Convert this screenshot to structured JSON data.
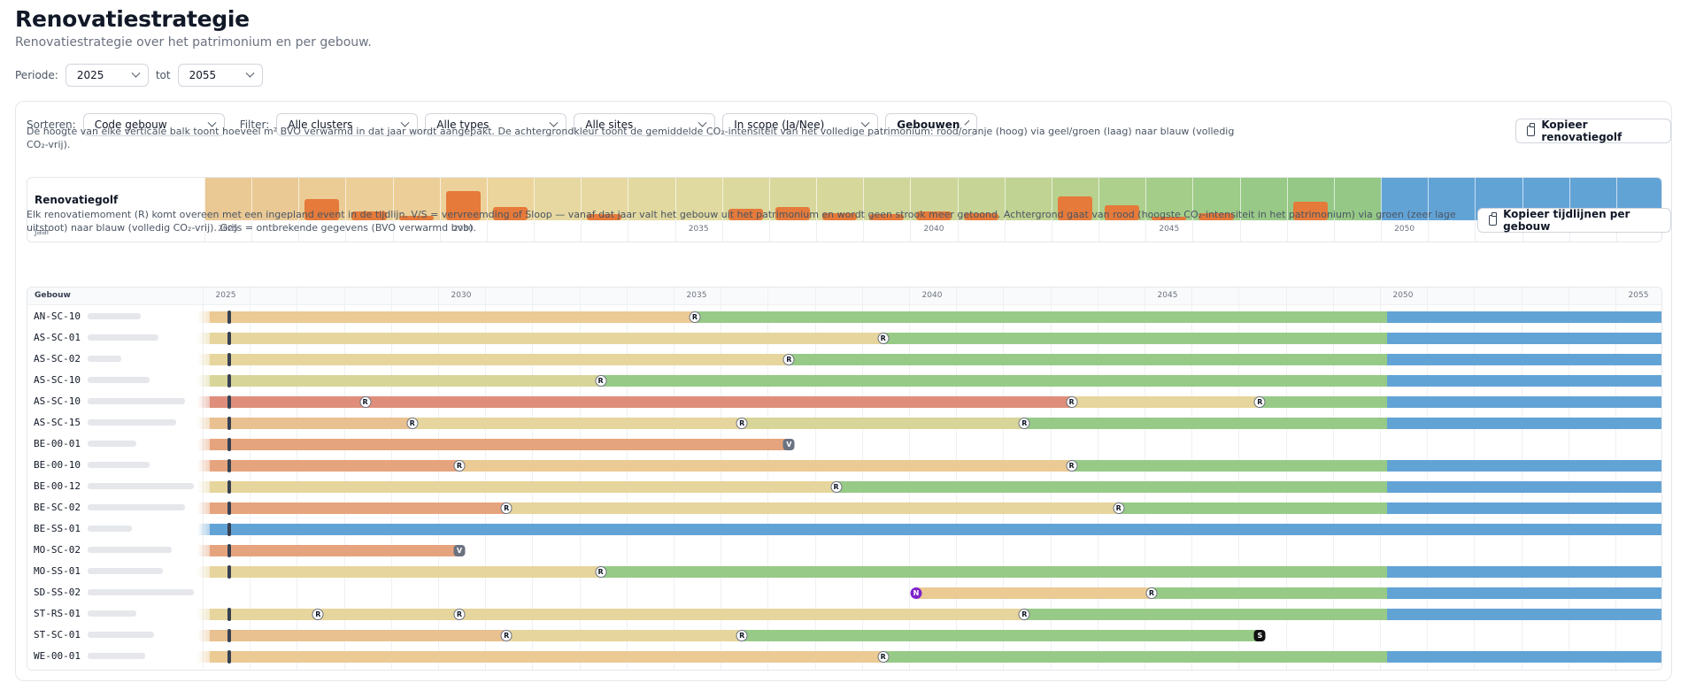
{
  "page": {
    "title": "Renovatiestrategie",
    "subtitle": "Renovatiestrategie over het patrimonium en per gebouw."
  },
  "period": {
    "label": "Periode:",
    "from": "2025",
    "separator": "tot",
    "to": "2055"
  },
  "filters": {
    "sort_label": "Sorteren:",
    "sort_value": "Code gebouw",
    "filter_label": "Filter:",
    "clusters": "Alle clusters",
    "types": "Alle types",
    "sites": "Alle sites",
    "scope": "In scope (Ja/Nee)",
    "view": "Gebouwen"
  },
  "wave": {
    "description": "De hoogte van elke verticale balk toont hoeveel m² BVO verwarmd in dat jaar wordt aangepakt. De achtergrondkleur toont de gemiddelde CO₂-intensiteit van het volledige patrimonium: rood/oranje (hoog) via geel/groen (laag) naar blauw (volledig CO₂-vrij).",
    "copy_button": "Kopieer renovatiegolf",
    "label": "Renovatiegolf",
    "axis_label": "Jaar",
    "year_labels": [
      "2025",
      "2030",
      "2035",
      "2040",
      "2045",
      "2050",
      "2055"
    ],
    "bar_color": "#e57a3a",
    "years": [
      2025,
      2026,
      2027,
      2028,
      2029,
      2030,
      2031,
      2032,
      2033,
      2034,
      2035,
      2036,
      2037,
      2038,
      2039,
      2040,
      2041,
      2042,
      2043,
      2044,
      2045,
      2046,
      2047,
      2048,
      2049,
      2050,
      2051,
      2052,
      2053,
      2054,
      2055
    ],
    "relative_volume": [
      0,
      0,
      0.55,
      0.22,
      0.12,
      0.75,
      0.35,
      0,
      0.15,
      0,
      0,
      0.3,
      0.35,
      0.18,
      0.16,
      0.22,
      0.18,
      0,
      0.62,
      0.38,
      0.08,
      0.18,
      0,
      0.48,
      0,
      0,
      0,
      0,
      0,
      0,
      0
    ],
    "background_colors": [
      "#eac995",
      "#eac995",
      "#ebcc95",
      "#eccf98",
      "#eccf98",
      "#ecd29a",
      "#ecd59c",
      "#e6d8a0",
      "#e6d8a0",
      "#e2d9a0",
      "#e0daa0",
      "#dcd99e",
      "#d9d89c",
      "#d6d89b",
      "#d0d699",
      "#cdd698",
      "#c6d495",
      "#c1d392",
      "#b9d18f",
      "#add08c",
      "#a4cd8a",
      "#9dcb88",
      "#99c987",
      "#95c886",
      "#95c886",
      "#62a3d6",
      "#62a3d6",
      "#62a3d6",
      "#62a3d6",
      "#62a3d6",
      "#62a3d6"
    ]
  },
  "timeline": {
    "description": "Elk renovatiemoment (R) komt overeen met een ingepland event in de tijdlijn. V/S = vervreemding of Sloop — vanaf dat jaar valt het gebouw uit het patrimonium en wordt geen strook meer getoond. Achtergrond gaat van rood (hoogste CO₂-intensiteit in het patrimonium) via groen (zeer lage uitstoot) naar blauw (volledig CO₂-vrij). Grijs = ontbrekende gegevens (BVO verwarmd bvb).",
    "copy_button": "Kopieer tijdlijnen per gebouw",
    "header": "Gebouw",
    "year_labels": [
      "2025",
      "2030",
      "2035",
      "2040",
      "2045",
      "2050",
      "2055"
    ],
    "colors": {
      "red": "#de8e7a",
      "orange": "#e6a47e",
      "peach": "#e9c08f",
      "tan": "#ebca94",
      "beige": "#e6d59c",
      "khaki": "#d8d598",
      "sage": "#cdd495",
      "green": "#98ca87",
      "blue": "#62a3d6"
    },
    "rows": [
      {
        "code": "AN-SC-10",
        "blur_width": 60,
        "segments": [
          {
            "from": 2025,
            "to": 2035.3,
            "color": "tan"
          },
          {
            "from": 2035.3,
            "to": 2050,
            "color": "green"
          },
          {
            "from": 2050,
            "to": 2055.5,
            "color": "blue"
          }
        ],
        "events": [
          {
            "year": 2035.3,
            "type": "R"
          }
        ]
      },
      {
        "code": "AS-SC-01",
        "blur_width": 80,
        "segments": [
          {
            "from": 2025,
            "to": 2039.3,
            "color": "beige"
          },
          {
            "from": 2039.3,
            "to": 2050,
            "color": "green"
          },
          {
            "from": 2050,
            "to": 2055.5,
            "color": "blue"
          }
        ],
        "events": [
          {
            "year": 2039.3,
            "type": "R"
          }
        ]
      },
      {
        "code": "AS-SC-02",
        "blur_width": 38,
        "segments": [
          {
            "from": 2025,
            "to": 2037.3,
            "color": "beige"
          },
          {
            "from": 2037.3,
            "to": 2050,
            "color": "green"
          },
          {
            "from": 2050,
            "to": 2055.5,
            "color": "blue"
          }
        ],
        "events": [
          {
            "year": 2037.3,
            "type": "R"
          }
        ]
      },
      {
        "code": "AS-SC-10",
        "blur_width": 70,
        "segments": [
          {
            "from": 2025,
            "to": 2033.3,
            "color": "khaki"
          },
          {
            "from": 2033.3,
            "to": 2050,
            "color": "green"
          },
          {
            "from": 2050,
            "to": 2055.5,
            "color": "blue"
          }
        ],
        "events": [
          {
            "year": 2033.3,
            "type": "R"
          }
        ]
      },
      {
        "code": "AS-SC-10",
        "blur_width": 110,
        "segments": [
          {
            "from": 2025,
            "to": 2043.3,
            "color": "red"
          },
          {
            "from": 2043.3,
            "to": 2047.3,
            "color": "beige"
          },
          {
            "from": 2047.3,
            "to": 2050,
            "color": "green"
          },
          {
            "from": 2050,
            "to": 2055.5,
            "color": "blue"
          }
        ],
        "events": [
          {
            "year": 2028.3,
            "type": "R"
          },
          {
            "year": 2043.3,
            "type": "R"
          },
          {
            "year": 2047.3,
            "type": "R"
          }
        ]
      },
      {
        "code": "AS-SC-15",
        "blur_width": 100,
        "segments": [
          {
            "from": 2025,
            "to": 2029.3,
            "color": "peach"
          },
          {
            "from": 2029.3,
            "to": 2036.3,
            "color": "beige"
          },
          {
            "from": 2036.3,
            "to": 2042.3,
            "color": "khaki"
          },
          {
            "from": 2042.3,
            "to": 2050,
            "color": "green"
          },
          {
            "from": 2050,
            "to": 2055.5,
            "color": "blue"
          }
        ],
        "events": [
          {
            "year": 2029.3,
            "type": "R"
          },
          {
            "year": 2036.3,
            "type": "R"
          },
          {
            "year": 2042.3,
            "type": "R"
          }
        ]
      },
      {
        "code": "BE-00-01",
        "blur_width": 55,
        "segments": [
          {
            "from": 2025,
            "to": 2037.3,
            "color": "orange"
          }
        ],
        "events": [
          {
            "year": 2037.3,
            "type": "V"
          }
        ]
      },
      {
        "code": "BE-00-10",
        "blur_width": 70,
        "segments": [
          {
            "from": 2025,
            "to": 2030.3,
            "color": "orange"
          },
          {
            "from": 2030.3,
            "to": 2043.3,
            "color": "tan"
          },
          {
            "from": 2043.3,
            "to": 2050,
            "color": "green"
          },
          {
            "from": 2050,
            "to": 2055.5,
            "color": "blue"
          }
        ],
        "events": [
          {
            "year": 2030.3,
            "type": "R"
          },
          {
            "year": 2043.3,
            "type": "R"
          }
        ]
      },
      {
        "code": "BE-00-12",
        "blur_width": 120,
        "segments": [
          {
            "from": 2025,
            "to": 2038.3,
            "color": "beige"
          },
          {
            "from": 2038.3,
            "to": 2050,
            "color": "green"
          },
          {
            "from": 2050,
            "to": 2055.5,
            "color": "blue"
          }
        ],
        "events": [
          {
            "year": 2038.3,
            "type": "R"
          }
        ]
      },
      {
        "code": "BE-SC-02",
        "blur_width": 110,
        "segments": [
          {
            "from": 2025,
            "to": 2031.3,
            "color": "orange"
          },
          {
            "from": 2031.3,
            "to": 2044.3,
            "color": "beige"
          },
          {
            "from": 2044.3,
            "to": 2050,
            "color": "green"
          },
          {
            "from": 2050,
            "to": 2055.5,
            "color": "blue"
          }
        ],
        "events": [
          {
            "year": 2031.3,
            "type": "R"
          },
          {
            "year": 2044.3,
            "type": "R"
          }
        ]
      },
      {
        "code": "BE-SS-01",
        "blur_width": 50,
        "segments": [
          {
            "from": 2025,
            "to": 2055.5,
            "color": "blue"
          }
        ],
        "events": []
      },
      {
        "code": "MO-SC-02",
        "blur_width": 95,
        "segments": [
          {
            "from": 2025,
            "to": 2030.3,
            "color": "orange"
          }
        ],
        "events": [
          {
            "year": 2030.3,
            "type": "V"
          }
        ]
      },
      {
        "code": "MO-SS-01",
        "blur_width": 85,
        "segments": [
          {
            "from": 2025,
            "to": 2033.3,
            "color": "beige"
          },
          {
            "from": 2033.3,
            "to": 2050,
            "color": "green"
          },
          {
            "from": 2050,
            "to": 2055.5,
            "color": "blue"
          }
        ],
        "events": [
          {
            "year": 2033.3,
            "type": "R"
          }
        ]
      },
      {
        "code": "SD-SS-02",
        "blur_width": 135,
        "segments": [
          {
            "from": 2040,
            "to": 2045,
            "color": "tan"
          },
          {
            "from": 2045,
            "to": 2050,
            "color": "green"
          },
          {
            "from": 2050,
            "to": 2055.5,
            "color": "blue"
          }
        ],
        "events": [
          {
            "year": 2040,
            "type": "N"
          },
          {
            "year": 2045,
            "type": "R"
          }
        ]
      },
      {
        "code": "ST-RS-01",
        "blur_width": 55,
        "segments": [
          {
            "from": 2025,
            "to": 2042.3,
            "color": "beige"
          },
          {
            "from": 2042.3,
            "to": 2050,
            "color": "green"
          },
          {
            "from": 2050,
            "to": 2055.5,
            "color": "blue"
          }
        ],
        "events": [
          {
            "year": 2027.3,
            "type": "R"
          },
          {
            "year": 2030.3,
            "type": "R"
          },
          {
            "year": 2042.3,
            "type": "R"
          }
        ]
      },
      {
        "code": "ST-SC-01",
        "blur_width": 75,
        "segments": [
          {
            "from": 2025,
            "to": 2031.3,
            "color": "peach"
          },
          {
            "from": 2031.3,
            "to": 2036.3,
            "color": "beige"
          },
          {
            "from": 2036.3,
            "to": 2047.3,
            "color": "green"
          }
        ],
        "events": [
          {
            "year": 2031.3,
            "type": "R"
          },
          {
            "year": 2036.3,
            "type": "R"
          },
          {
            "year": 2047.3,
            "type": "S"
          }
        ]
      },
      {
        "code": "WE-00-01",
        "blur_width": 65,
        "segments": [
          {
            "from": 2025,
            "to": 2039.3,
            "color": "tan"
          },
          {
            "from": 2039.3,
            "to": 2050,
            "color": "green"
          },
          {
            "from": 2050,
            "to": 2055.5,
            "color": "blue"
          }
        ],
        "events": [
          {
            "year": 2039.3,
            "type": "R"
          }
        ]
      }
    ]
  }
}
